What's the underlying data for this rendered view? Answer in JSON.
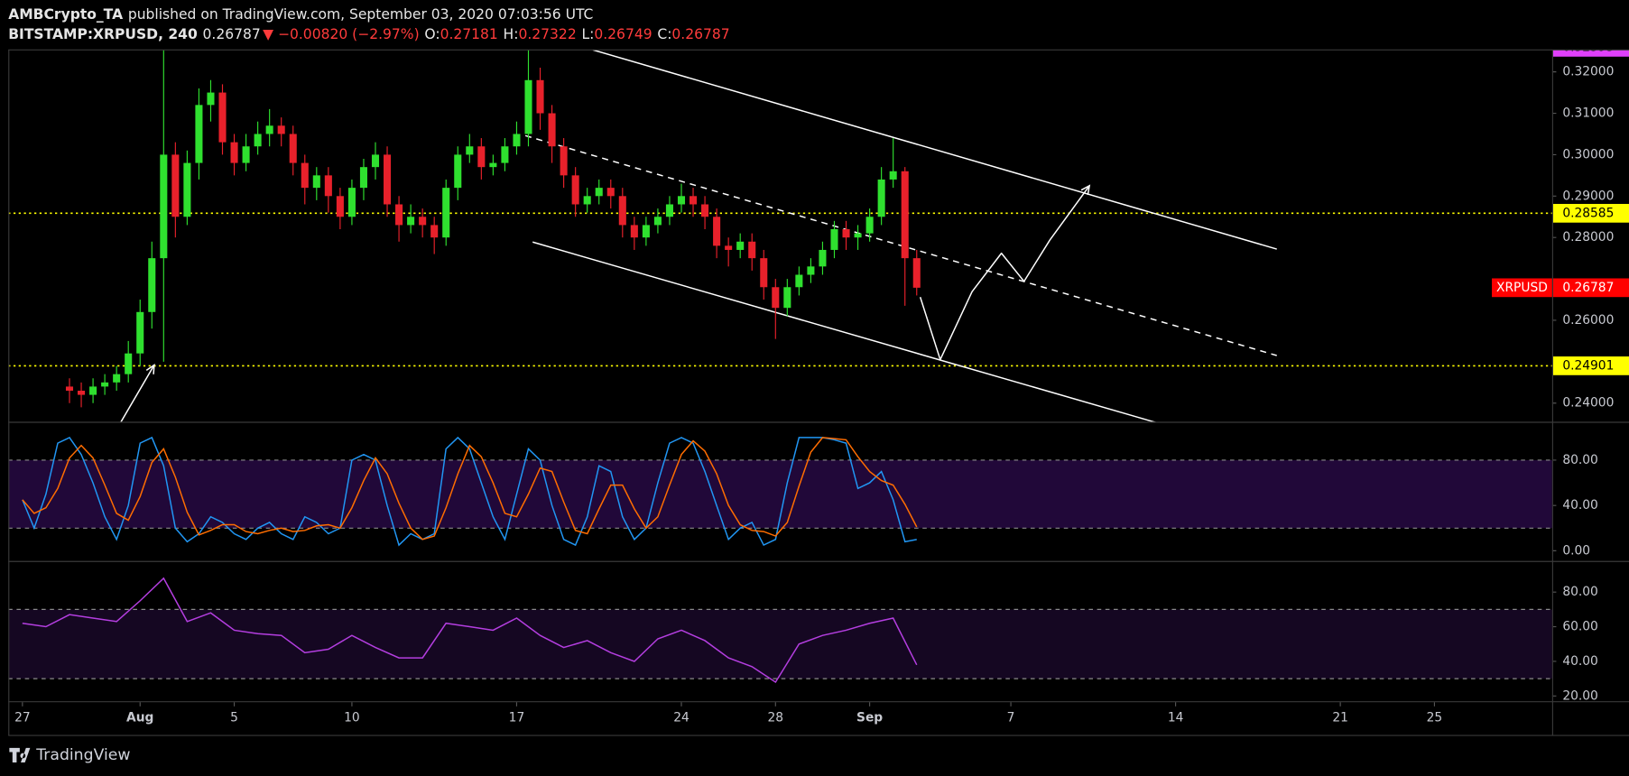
{
  "header": {
    "author": "AMBCrypto_TA",
    "published": "published on TradingView.com, September 03, 2020 07:03:56 UTC",
    "symbol": "BITSTAMP:XRPUSD, 240",
    "last": "0.26787",
    "change": "▼ −0.00820 (−2.97%)",
    "ohlc": [
      {
        "key": "O:",
        "value": "0.27181"
      },
      {
        "key": "H:",
        "value": "0.27322"
      },
      {
        "key": "L:",
        "value": "0.26749"
      },
      {
        "key": "C:",
        "value": "0.26787"
      }
    ],
    "brand": "TradingView"
  },
  "chart_data": {
    "type": "candlestick",
    "up_color": "#2fe02f",
    "down_color": "#e8212b",
    "x": [
      2,
      2.5,
      3,
      3.5,
      4,
      4.5,
      5,
      5.5,
      6,
      6.5,
      7,
      7.5,
      8,
      8.5,
      9,
      9.5,
      10,
      10.5,
      11,
      11.5,
      12,
      12.5,
      13,
      13.5,
      14,
      14.5,
      15,
      15.5,
      16,
      16.5,
      17,
      17.5,
      18,
      18.5,
      19,
      19.5,
      20,
      20.5,
      21,
      21.5,
      22,
      22.5,
      23,
      23.5,
      24,
      24.5,
      25,
      25.5,
      26,
      26.5,
      27,
      27.5,
      28,
      28.5,
      29,
      29.5,
      30,
      30.5,
      31,
      31.5,
      32,
      32.5,
      33,
      33.5,
      34,
      34.5,
      35,
      35.5,
      36,
      36.5,
      37,
      37.5,
      38
    ],
    "open": [
      0.244,
      0.243,
      0.242,
      0.244,
      0.245,
      0.247,
      0.252,
      0.262,
      0.275,
      0.3,
      0.285,
      0.298,
      0.312,
      0.315,
      0.303,
      0.298,
      0.302,
      0.305,
      0.307,
      0.305,
      0.298,
      0.292,
      0.295,
      0.29,
      0.285,
      0.292,
      0.297,
      0.3,
      0.288,
      0.283,
      0.285,
      0.283,
      0.28,
      0.292,
      0.3,
      0.302,
      0.297,
      0.298,
      0.302,
      0.305,
      0.318,
      0.31,
      0.302,
      0.295,
      0.288,
      0.29,
      0.292,
      0.29,
      0.283,
      0.28,
      0.283,
      0.285,
      0.288,
      0.29,
      0.288,
      0.285,
      0.278,
      0.277,
      0.279,
      0.275,
      0.268,
      0.263,
      0.268,
      0.271,
      0.273,
      0.277,
      0.282,
      0.28,
      0.281,
      0.285,
      0.294,
      0.296,
      0.275
    ],
    "high": [
      0.246,
      0.245,
      0.246,
      0.247,
      0.249,
      0.255,
      0.265,
      0.279,
      0.3253,
      0.303,
      0.301,
      0.316,
      0.318,
      0.317,
      0.305,
      0.305,
      0.308,
      0.311,
      0.309,
      0.307,
      0.3,
      0.297,
      0.297,
      0.292,
      0.294,
      0.299,
      0.303,
      0.302,
      0.29,
      0.288,
      0.287,
      0.285,
      0.294,
      0.302,
      0.305,
      0.304,
      0.3,
      0.304,
      0.308,
      0.3253,
      0.321,
      0.312,
      0.304,
      0.297,
      0.292,
      0.294,
      0.294,
      0.292,
      0.285,
      0.285,
      0.287,
      0.29,
      0.293,
      0.292,
      0.29,
      0.287,
      0.28,
      0.281,
      0.281,
      0.277,
      0.27,
      0.27,
      0.273,
      0.275,
      0.279,
      0.284,
      0.284,
      0.283,
      0.287,
      0.297,
      0.304,
      0.297,
      0.277
    ],
    "low": [
      0.24,
      0.239,
      0.24,
      0.242,
      0.243,
      0.245,
      0.249,
      0.258,
      0.25,
      0.28,
      0.283,
      0.294,
      0.308,
      0.3,
      0.295,
      0.296,
      0.3,
      0.302,
      0.302,
      0.295,
      0.288,
      0.289,
      0.286,
      0.282,
      0.283,
      0.289,
      0.294,
      0.285,
      0.279,
      0.281,
      0.28,
      0.276,
      0.278,
      0.289,
      0.298,
      0.294,
      0.295,
      0.296,
      0.3,
      0.302,
      0.306,
      0.298,
      0.292,
      0.285,
      0.286,
      0.288,
      0.287,
      0.28,
      0.277,
      0.278,
      0.281,
      0.283,
      0.286,
      0.285,
      0.282,
      0.275,
      0.273,
      0.275,
      0.272,
      0.265,
      0.2555,
      0.261,
      0.266,
      0.269,
      0.271,
      0.275,
      0.277,
      0.277,
      0.279,
      0.283,
      0.292,
      0.2635,
      0.266
    ],
    "close": [
      0.243,
      0.242,
      0.244,
      0.245,
      0.247,
      0.252,
      0.262,
      0.275,
      0.3,
      0.285,
      0.298,
      0.312,
      0.315,
      0.303,
      0.298,
      0.302,
      0.305,
      0.307,
      0.305,
      0.298,
      0.292,
      0.295,
      0.29,
      0.285,
      0.292,
      0.297,
      0.3,
      0.288,
      0.283,
      0.285,
      0.283,
      0.28,
      0.292,
      0.3,
      0.302,
      0.297,
      0.298,
      0.302,
      0.305,
      0.318,
      0.31,
      0.302,
      0.295,
      0.288,
      0.29,
      0.292,
      0.29,
      0.283,
      0.28,
      0.283,
      0.285,
      0.288,
      0.29,
      0.288,
      0.285,
      0.278,
      0.277,
      0.279,
      0.275,
      0.268,
      0.263,
      0.268,
      0.271,
      0.273,
      0.277,
      0.282,
      0.28,
      0.281,
      0.285,
      0.294,
      0.296,
      0.275,
      0.26787
    ],
    "xlim": [
      -0.6,
      65
    ],
    "xticks": [
      {
        "value": 0,
        "label": "27"
      },
      {
        "value": 5,
        "label": "Aug"
      },
      {
        "value": 9,
        "label": "5"
      },
      {
        "value": 14,
        "label": "10"
      },
      {
        "value": 21,
        "label": "17"
      },
      {
        "value": 28,
        "label": "24"
      },
      {
        "value": 32,
        "label": "28"
      },
      {
        "value": 36,
        "label": "Sep"
      },
      {
        "value": 42,
        "label": "7"
      },
      {
        "value": 49,
        "label": "14"
      },
      {
        "value": 56,
        "label": "21"
      },
      {
        "value": 60,
        "label": "25"
      }
    ],
    "ylim": [
      0.2355,
      0.3253
    ],
    "yticks": [
      {
        "value": 0.24,
        "label": "0.24000"
      },
      {
        "value": 0.26,
        "label": "0.26000"
      },
      {
        "value": 0.28,
        "label": "0.28000"
      },
      {
        "value": 0.29,
        "label": "0.29000"
      },
      {
        "value": 0.3,
        "label": "0.30000"
      },
      {
        "value": 0.31,
        "label": "0.31000"
      },
      {
        "value": 0.32,
        "label": "0.32000"
      }
    ],
    "levels": [
      {
        "value": 0.28585,
        "color": "#ffff00"
      },
      {
        "value": 0.24901,
        "color": "#ffff00"
      }
    ],
    "last_price": {
      "name": "XRPUSD",
      "value": 0.26787,
      "color": "#ff0000"
    },
    "high_marker": {
      "value": 0.32593,
      "color": "#e040fb"
    },
    "trendlines": [
      {
        "points": [
          [
            24.24,
            0.3253
          ],
          [
            53.3,
            0.2772
          ]
        ],
        "dashed": false,
        "color": "#ffffff"
      },
      {
        "points": [
          [
            21.68,
            0.2789
          ],
          [
            48.3,
            0.2351
          ]
        ],
        "dashed": false,
        "color": "#ffffff"
      },
      {
        "points": [
          [
            21.37,
            0.3046
          ],
          [
            53.3,
            0.2515
          ]
        ],
        "dashed": true,
        "color": "#ffffff"
      }
    ],
    "projections": [
      {
        "points": [
          [
            38.15,
            0.2656
          ],
          [
            39.0,
            0.2505
          ],
          [
            40.35,
            0.2669
          ],
          [
            41.6,
            0.2762
          ],
          [
            42.56,
            0.2694
          ],
          [
            43.66,
            0.2794
          ],
          [
            45.34,
            0.2925
          ]
        ],
        "color": "#ffffff"
      },
      {
        "points": [
          [
            4.15,
            0.2351
          ],
          [
            5.6,
            0.2492
          ]
        ],
        "color": "#ffffff"
      }
    ],
    "indicators": [
      {
        "x": [
          0,
          0.5,
          1,
          1.5,
          2,
          2.5,
          3,
          3.5,
          4,
          4.5,
          5,
          5.5,
          6,
          6.5,
          7,
          7.5,
          8,
          8.5,
          9,
          9.5,
          10,
          10.5,
          11,
          11.5,
          12,
          12.5,
          13,
          13.5,
          14,
          14.5,
          15,
          15.5,
          16,
          16.5,
          17,
          17.5,
          18,
          18.5,
          19,
          19.5,
          20,
          20.5,
          21,
          21.5,
          22,
          22.5,
          23,
          23.5,
          24,
          24.5,
          25,
          25.5,
          26,
          26.5,
          27,
          27.5,
          28,
          28.5,
          29,
          29.5,
          30,
          30.5,
          31,
          31.5,
          32,
          32.5,
          33,
          33.5,
          34,
          34.5,
          35,
          35.5,
          36,
          36.5,
          37,
          37.5,
          38
        ],
        "ylim": [
          -9,
          113
        ],
        "yticks": [
          {
            "value": 0,
            "label": "0.00"
          },
          {
            "value": 40,
            "label": "40.00"
          },
          {
            "value": 80,
            "label": "80.00"
          }
        ],
        "bands": [
          80,
          20
        ],
        "band_color": "#210839",
        "series": [
          {
            "color": "#2196f3",
            "values": [
              45,
              20,
              50,
              95,
              100,
              85,
              60,
              30,
              10,
              40,
              95,
              100,
              75,
              20,
              8,
              15,
              30,
              25,
              15,
              10,
              20,
              25,
              15,
              10,
              30,
              25,
              15,
              20,
              80,
              85,
              80,
              40,
              5,
              15,
              10,
              15,
              90,
              100,
              90,
              60,
              30,
              10,
              50,
              90,
              80,
              40,
              10,
              5,
              30,
              75,
              70,
              30,
              10,
              20,
              60,
              95,
              100,
              95,
              70,
              40,
              10,
              20,
              25,
              5,
              10,
              60,
              100,
              100,
              100,
              98,
              95,
              55,
              60,
              70,
              45,
              8,
              10
            ]
          },
          {
            "color": "#ff6d00",
            "values": [
              45,
              33,
              38,
              55,
              82,
              93,
              82,
              58,
              33,
              27,
              48,
              78,
              90,
              65,
              34,
              14,
              18,
              23,
              23,
              17,
              15,
              18,
              20,
              17,
              18,
              22,
              23,
              20,
              38,
              62,
              82,
              68,
              42,
              20,
              10,
              13,
              38,
              68,
              93,
              83,
              60,
              33,
              30,
              50,
              73,
              70,
              43,
              18,
              15,
              37,
              58,
              58,
              37,
              20,
              30,
              58,
              85,
              97,
              88,
              68,
              40,
              23,
              18,
              17,
              13,
              25,
              57,
              87,
              100,
              99,
              98,
              83,
              70,
              62,
              58,
              41,
              21
            ]
          }
        ]
      },
      {
        "x": [
          0,
          1,
          2,
          3,
          4,
          5,
          6,
          7,
          8,
          9,
          10,
          11,
          12,
          13,
          14,
          15,
          16,
          17,
          18,
          19,
          20,
          21,
          22,
          23,
          24,
          25,
          26,
          27,
          28,
          29,
          30,
          31,
          32,
          33,
          34,
          35,
          36,
          37,
          38
        ],
        "ylim": [
          17,
          97.4
        ],
        "yticks": [
          {
            "value": 20,
            "label": "20.00"
          },
          {
            "value": 40,
            "label": "40.00"
          },
          {
            "value": 60,
            "label": "60.00"
          },
          {
            "value": 80,
            "label": "80.00"
          }
        ],
        "bands": [
          70,
          30
        ],
        "band_color": "#150722",
        "series": [
          {
            "color": "#b43ee0",
            "values": [
              62,
              60,
              67,
              65,
              63,
              75,
              88,
              63,
              68,
              58,
              56,
              55,
              45,
              47,
              55,
              48,
              42,
              42,
              62,
              60,
              58,
              65,
              55,
              48,
              52,
              45,
              40,
              53,
              58,
              52,
              42,
              37,
              28,
              50,
              55,
              58,
              62,
              65,
              38
            ]
          }
        ]
      }
    ]
  }
}
